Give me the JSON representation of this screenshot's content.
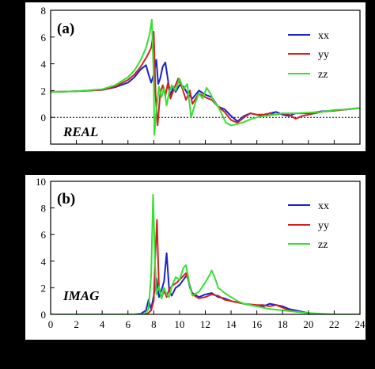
{
  "chart_data": [
    {
      "type": "line",
      "panel_label": "(a)",
      "note": "REAL",
      "xlim": [
        0,
        24
      ],
      "ylim": [
        -2,
        8
      ],
      "yticks": [
        0,
        2,
        4,
        6,
        8
      ],
      "reference_line_y": 0,
      "legend": "top-right",
      "series": [
        {
          "name": "xx",
          "color": "#1a22c8",
          "points": [
            [
              0,
              1.9
            ],
            [
              2,
              1.95
            ],
            [
              4,
              2.05
            ],
            [
              5,
              2.25
            ],
            [
              6,
              2.6
            ],
            [
              6.5,
              3.0
            ],
            [
              7,
              3.6
            ],
            [
              7.4,
              3.9
            ],
            [
              7.6,
              3.2
            ],
            [
              7.8,
              2.6
            ],
            [
              8.0,
              3.2
            ],
            [
              8.2,
              4.3
            ],
            [
              8.35,
              2.5
            ],
            [
              8.5,
              2.9
            ],
            [
              8.7,
              3.8
            ],
            [
              8.9,
              4.1
            ],
            [
              9.1,
              2.8
            ],
            [
              9.3,
              1.6
            ],
            [
              9.5,
              2.3
            ],
            [
              9.7,
              1.9
            ],
            [
              10.0,
              2.4
            ],
            [
              10.3,
              2.3
            ],
            [
              10.6,
              1.8
            ],
            [
              11.0,
              1.4
            ],
            [
              11.5,
              2.0
            ],
            [
              12.0,
              1.7
            ],
            [
              12.5,
              1.5
            ],
            [
              13.0,
              0.8
            ],
            [
              13.5,
              0.6
            ],
            [
              14.0,
              0.1
            ],
            [
              14.5,
              -0.3
            ],
            [
              15.0,
              0.1
            ],
            [
              15.5,
              0.3
            ],
            [
              16.0,
              0.2
            ],
            [
              16.5,
              0.1
            ],
            [
              17.0,
              0.3
            ],
            [
              17.5,
              0.4
            ],
            [
              18.0,
              0.2
            ],
            [
              18.5,
              0.1
            ],
            [
              19.0,
              0.3
            ],
            [
              20.0,
              0.3
            ],
            [
              21.0,
              0.45
            ],
            [
              22.0,
              0.5
            ],
            [
              23.0,
              0.6
            ],
            [
              24.0,
              0.7
            ]
          ]
        },
        {
          "name": "yy",
          "color": "#d42020",
          "points": [
            [
              0,
              1.9
            ],
            [
              2,
              1.95
            ],
            [
              4,
              2.05
            ],
            [
              5,
              2.3
            ],
            [
              6,
              2.8
            ],
            [
              6.5,
              3.2
            ],
            [
              7,
              3.8
            ],
            [
              7.5,
              4.6
            ],
            [
              7.8,
              5.2
            ],
            [
              8.0,
              6.4
            ],
            [
              8.15,
              1.5
            ],
            [
              8.3,
              -0.6
            ],
            [
              8.5,
              1.8
            ],
            [
              8.7,
              2.4
            ],
            [
              8.9,
              1.6
            ],
            [
              9.1,
              2.6
            ],
            [
              9.3,
              1.4
            ],
            [
              9.6,
              2.2
            ],
            [
              9.9,
              2.9
            ],
            [
              10.2,
              2.2
            ],
            [
              10.5,
              1.3
            ],
            [
              10.8,
              2.0
            ],
            [
              11.0,
              1.0
            ],
            [
              11.5,
              1.8
            ],
            [
              12.0,
              1.5
            ],
            [
              12.5,
              1.3
            ],
            [
              13.0,
              0.8
            ],
            [
              13.5,
              0.4
            ],
            [
              14.0,
              -0.2
            ],
            [
              14.5,
              -0.4
            ],
            [
              15.0,
              0.0
            ],
            [
              15.5,
              0.3
            ],
            [
              16.0,
              0.2
            ],
            [
              16.5,
              0.2
            ],
            [
              17.0,
              0.3
            ],
            [
              17.5,
              0.2
            ],
            [
              18.0,
              0.3
            ],
            [
              18.5,
              0.2
            ],
            [
              19.0,
              -0.1
            ],
            [
              19.5,
              0.1
            ],
            [
              20.0,
              0.2
            ],
            [
              21.0,
              0.4
            ],
            [
              22.0,
              0.5
            ],
            [
              23.0,
              0.6
            ],
            [
              24.0,
              0.7
            ]
          ]
        },
        {
          "name": "zz",
          "color": "#33e033",
          "points": [
            [
              0,
              1.9
            ],
            [
              2,
              1.95
            ],
            [
              4,
              2.1
            ],
            [
              5,
              2.4
            ],
            [
              6,
              3.0
            ],
            [
              6.5,
              3.5
            ],
            [
              7,
              4.3
            ],
            [
              7.4,
              5.2
            ],
            [
              7.7,
              6.3
            ],
            [
              7.85,
              7.3
            ],
            [
              8.0,
              3.0
            ],
            [
              8.05,
              -1.3
            ],
            [
              8.2,
              0.5
            ],
            [
              8.4,
              2.3
            ],
            [
              8.6,
              1.5
            ],
            [
              8.8,
              2.2
            ],
            [
              9.0,
              0.9
            ],
            [
              9.2,
              1.9
            ],
            [
              9.4,
              2.4
            ],
            [
              9.7,
              2.0
            ],
            [
              10.0,
              2.9
            ],
            [
              10.3,
              2.1
            ],
            [
              10.6,
              2.5
            ],
            [
              10.9,
              0.0
            ],
            [
              11.2,
              1.0
            ],
            [
              11.5,
              1.8
            ],
            [
              11.8,
              1.4
            ],
            [
              12.1,
              2.2
            ],
            [
              12.4,
              1.8
            ],
            [
              12.6,
              1.3
            ],
            [
              13.0,
              0.8
            ],
            [
              13.3,
              0.2
            ],
            [
              13.6,
              -0.4
            ],
            [
              14.0,
              -0.6
            ],
            [
              14.5,
              -0.5
            ],
            [
              15.0,
              -0.35
            ],
            [
              15.5,
              -0.15
            ],
            [
              16.0,
              0.0
            ],
            [
              16.5,
              0.1
            ],
            [
              17.0,
              0.15
            ],
            [
              18.0,
              0.3
            ],
            [
              19.0,
              0.3
            ],
            [
              20.0,
              0.35
            ],
            [
              21.0,
              0.4
            ],
            [
              22.0,
              0.55
            ],
            [
              23.0,
              0.6
            ],
            [
              24.0,
              0.7
            ]
          ]
        }
      ]
    },
    {
      "type": "line",
      "panel_label": "(b)",
      "note": "IMAG",
      "xlim": [
        0,
        24
      ],
      "ylim": [
        0,
        10
      ],
      "xticks": [
        0,
        2,
        4,
        6,
        8,
        10,
        12,
        14,
        16,
        18,
        20,
        22,
        24
      ],
      "yticks": [
        0,
        2,
        4,
        6,
        8,
        10
      ],
      "legend": "top-right",
      "series": [
        {
          "name": "xx",
          "color": "#1a22c8",
          "points": [
            [
              0,
              0
            ],
            [
              6.5,
              0
            ],
            [
              7.0,
              0.05
            ],
            [
              7.4,
              0.3
            ],
            [
              7.6,
              1.1
            ],
            [
              7.8,
              0.4
            ],
            [
              8.0,
              1.4
            ],
            [
              8.2,
              2.7
            ],
            [
              8.4,
              1.3
            ],
            [
              8.6,
              1.8
            ],
            [
              8.8,
              2.5
            ],
            [
              9.0,
              4.6
            ],
            [
              9.2,
              1.8
            ],
            [
              9.4,
              1.4
            ],
            [
              9.7,
              2.0
            ],
            [
              10.0,
              2.2
            ],
            [
              10.3,
              2.6
            ],
            [
              10.6,
              3.0
            ],
            [
              10.8,
              2.0
            ],
            [
              11.0,
              1.6
            ],
            [
              11.5,
              1.3
            ],
            [
              12.0,
              1.5
            ],
            [
              12.5,
              1.6
            ],
            [
              13.0,
              1.3
            ],
            [
              13.5,
              1.2
            ],
            [
              14.0,
              1.0
            ],
            [
              14.5,
              0.9
            ],
            [
              15.0,
              0.8
            ],
            [
              15.5,
              0.7
            ],
            [
              16.0,
              0.6
            ],
            [
              16.5,
              0.6
            ],
            [
              17.0,
              0.8
            ],
            [
              17.5,
              0.7
            ],
            [
              18.0,
              0.6
            ],
            [
              18.5,
              0.4
            ],
            [
              19.0,
              0.3
            ],
            [
              19.5,
              0.2
            ],
            [
              20.0,
              0.1
            ],
            [
              20.5,
              0.05
            ],
            [
              21.0,
              0.0
            ],
            [
              24.0,
              0.0
            ]
          ]
        },
        {
          "name": "yy",
          "color": "#d42020",
          "points": [
            [
              0,
              0
            ],
            [
              7.0,
              0
            ],
            [
              7.5,
              0.05
            ],
            [
              7.8,
              0.3
            ],
            [
              8.0,
              1.0
            ],
            [
              8.1,
              4.0
            ],
            [
              8.25,
              7.1
            ],
            [
              8.4,
              2.0
            ],
            [
              8.6,
              1.2
            ],
            [
              8.8,
              1.8
            ],
            [
              9.0,
              1.3
            ],
            [
              9.2,
              1.9
            ],
            [
              9.5,
              2.2
            ],
            [
              9.8,
              2.4
            ],
            [
              10.2,
              2.8
            ],
            [
              10.5,
              3.1
            ],
            [
              10.8,
              2.2
            ],
            [
              11.0,
              1.5
            ],
            [
              11.5,
              1.2
            ],
            [
              12.0,
              1.3
            ],
            [
              12.5,
              1.5
            ],
            [
              13.0,
              1.4
            ],
            [
              13.5,
              1.1
            ],
            [
              14.0,
              1.0
            ],
            [
              14.5,
              0.9
            ],
            [
              15.0,
              0.8
            ],
            [
              16.0,
              0.7
            ],
            [
              16.5,
              0.7
            ],
            [
              17.0,
              0.6
            ],
            [
              17.5,
              0.7
            ],
            [
              18.0,
              0.5
            ],
            [
              18.5,
              0.3
            ],
            [
              19.0,
              0.2
            ],
            [
              20.0,
              0.1
            ],
            [
              20.5,
              0.0
            ],
            [
              24.0,
              0.0
            ]
          ]
        },
        {
          "name": "zz",
          "color": "#33e033",
          "points": [
            [
              0,
              0
            ],
            [
              7.0,
              0
            ],
            [
              7.3,
              0.05
            ],
            [
              7.6,
              0.4
            ],
            [
              7.8,
              3.0
            ],
            [
              7.95,
              9.0
            ],
            [
              8.1,
              4.0
            ],
            [
              8.2,
              1.5
            ],
            [
              8.4,
              2.1
            ],
            [
              8.6,
              1.2
            ],
            [
              8.8,
              2.0
            ],
            [
              9.0,
              1.5
            ],
            [
              9.2,
              1.3
            ],
            [
              9.4,
              2.1
            ],
            [
              9.7,
              2.8
            ],
            [
              10.0,
              2.6
            ],
            [
              10.3,
              3.5
            ],
            [
              10.5,
              3.7
            ],
            [
              10.8,
              2.1
            ],
            [
              11.0,
              1.4
            ],
            [
              11.5,
              1.7
            ],
            [
              12.0,
              2.4
            ],
            [
              12.3,
              2.9
            ],
            [
              12.5,
              3.3
            ],
            [
              12.8,
              2.6
            ],
            [
              13.0,
              2.0
            ],
            [
              13.5,
              1.6
            ],
            [
              14.0,
              1.3
            ],
            [
              14.5,
              1.0
            ],
            [
              15.0,
              0.8
            ],
            [
              16.0,
              0.6
            ],
            [
              17.0,
              0.4
            ],
            [
              18.0,
              0.3
            ],
            [
              19.0,
              0.2
            ],
            [
              20.0,
              0.1
            ],
            [
              21.0,
              0.05
            ],
            [
              22.0,
              0.0
            ],
            [
              24.0,
              0.0
            ]
          ]
        }
      ]
    }
  ]
}
